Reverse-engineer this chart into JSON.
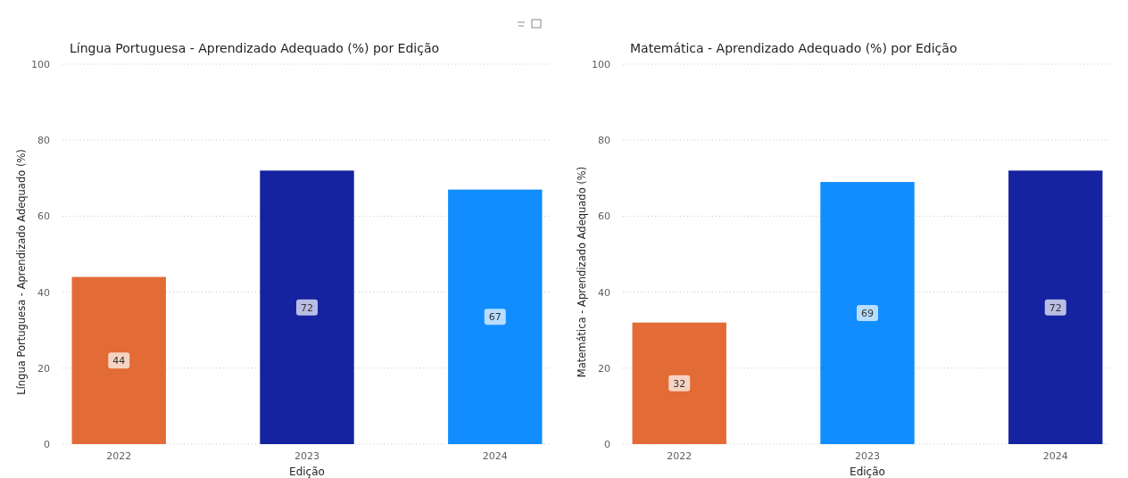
{
  "chart_data": [
    {
      "type": "bar",
      "title": "Língua Portuguesa - Aprendizado Adequado (%) por Edição",
      "xlabel": "Edição",
      "ylabel": "Língua Portuguesa - Aprendizado Adequado (%)",
      "categories": [
        "2022",
        "2023",
        "2024"
      ],
      "values": [
        44,
        72,
        67
      ],
      "colors": [
        "#e36b35",
        "#1523a0",
        "#118dff"
      ],
      "ylim": [
        0,
        100
      ],
      "yticks": [
        0,
        20,
        40,
        60,
        80,
        100
      ],
      "grid": "y",
      "data_labels": true
    },
    {
      "type": "bar",
      "title": "Matemática - Aprendizado Adequado (%) por Edição",
      "xlabel": "Edição",
      "ylabel": "Matemática - Aprendizado Adequado (%)",
      "categories": [
        "2022",
        "2023",
        "2024"
      ],
      "values": [
        32,
        69,
        72
      ],
      "colors": [
        "#e36b35",
        "#118dff",
        "#1523a0"
      ],
      "ylim": [
        0,
        100
      ],
      "yticks": [
        0,
        20,
        40,
        60,
        80,
        100
      ],
      "grid": "y",
      "data_labels": true
    }
  ]
}
